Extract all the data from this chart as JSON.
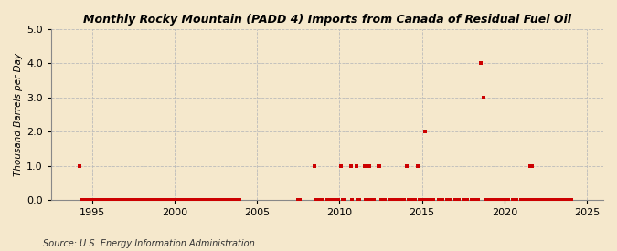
{
  "title": "Monthly Rocky Mountain (PADD 4) Imports from Canada of Residual Fuel Oil",
  "ylabel": "Thousand Barrels per Day",
  "source": "Source: U.S. Energy Information Administration",
  "xlim": [
    1992.5,
    2026
  ],
  "ylim": [
    0.0,
    5.0
  ],
  "yticks": [
    0.0,
    1.0,
    2.0,
    3.0,
    4.0,
    5.0
  ],
  "xticks": [
    1995,
    2000,
    2005,
    2010,
    2015,
    2020,
    2025
  ],
  "background_color": "#f5e8cc",
  "plot_bg_color": "#f5e8cc",
  "marker_color": "#cc0000",
  "grid_color": "#bbbbbb",
  "vline_color": "#bbbbbb",
  "data_points": [
    [
      1994.25,
      1.0
    ],
    [
      1994.33,
      0.0
    ],
    [
      1994.42,
      0.0
    ],
    [
      1994.5,
      0.0
    ],
    [
      1994.58,
      0.0
    ],
    [
      1994.67,
      0.0
    ],
    [
      1994.75,
      0.0
    ],
    [
      1994.83,
      0.0
    ],
    [
      1994.92,
      0.0
    ],
    [
      1995.0,
      0.0
    ],
    [
      1995.08,
      0.0
    ],
    [
      1995.17,
      0.0
    ],
    [
      1995.25,
      0.0
    ],
    [
      1995.33,
      0.0
    ],
    [
      1995.42,
      0.0
    ],
    [
      1995.5,
      0.0
    ],
    [
      1995.58,
      0.0
    ],
    [
      1995.67,
      0.0
    ],
    [
      1995.75,
      0.0
    ],
    [
      1995.83,
      0.0
    ],
    [
      1995.92,
      0.0
    ],
    [
      1996.0,
      0.0
    ],
    [
      1996.08,
      0.0
    ],
    [
      1996.17,
      0.0
    ],
    [
      1996.25,
      0.0
    ],
    [
      1996.33,
      0.0
    ],
    [
      1996.42,
      0.0
    ],
    [
      1996.5,
      0.0
    ],
    [
      1996.58,
      0.0
    ],
    [
      1996.67,
      0.0
    ],
    [
      1996.75,
      0.0
    ],
    [
      1996.83,
      0.0
    ],
    [
      1996.92,
      0.0
    ],
    [
      1997.0,
      0.0
    ],
    [
      1997.08,
      0.0
    ],
    [
      1997.17,
      0.0
    ],
    [
      1997.25,
      0.0
    ],
    [
      1997.33,
      0.0
    ],
    [
      1997.42,
      0.0
    ],
    [
      1997.5,
      0.0
    ],
    [
      1997.58,
      0.0
    ],
    [
      1997.67,
      0.0
    ],
    [
      1997.75,
      0.0
    ],
    [
      1997.83,
      0.0
    ],
    [
      1997.92,
      0.0
    ],
    [
      1998.0,
      0.0
    ],
    [
      1998.08,
      0.0
    ],
    [
      1998.17,
      0.0
    ],
    [
      1998.25,
      0.0
    ],
    [
      1998.33,
      0.0
    ],
    [
      1998.42,
      0.0
    ],
    [
      1998.5,
      0.0
    ],
    [
      1998.58,
      0.0
    ],
    [
      1998.67,
      0.0
    ],
    [
      1998.75,
      0.0
    ],
    [
      1998.83,
      0.0
    ],
    [
      1998.92,
      0.0
    ],
    [
      1999.0,
      0.0
    ],
    [
      1999.08,
      0.0
    ],
    [
      1999.17,
      0.0
    ],
    [
      1999.25,
      0.0
    ],
    [
      1999.33,
      0.0
    ],
    [
      1999.42,
      0.0
    ],
    [
      1999.5,
      0.0
    ],
    [
      1999.58,
      0.0
    ],
    [
      1999.67,
      0.0
    ],
    [
      1999.75,
      0.0
    ],
    [
      1999.83,
      0.0
    ],
    [
      1999.92,
      0.0
    ],
    [
      2000.0,
      0.0
    ],
    [
      2000.08,
      0.0
    ],
    [
      2000.17,
      0.0
    ],
    [
      2000.25,
      0.0
    ],
    [
      2000.33,
      0.0
    ],
    [
      2000.42,
      0.0
    ],
    [
      2000.5,
      0.0
    ],
    [
      2000.58,
      0.0
    ],
    [
      2000.67,
      0.0
    ],
    [
      2000.75,
      0.0
    ],
    [
      2000.83,
      0.0
    ],
    [
      2000.92,
      0.0
    ],
    [
      2001.0,
      0.0
    ],
    [
      2001.08,
      0.0
    ],
    [
      2001.17,
      0.0
    ],
    [
      2001.25,
      0.0
    ],
    [
      2001.33,
      0.0
    ],
    [
      2001.42,
      0.0
    ],
    [
      2001.5,
      0.0
    ],
    [
      2001.58,
      0.0
    ],
    [
      2001.67,
      0.0
    ],
    [
      2001.75,
      0.0
    ],
    [
      2001.83,
      0.0
    ],
    [
      2001.92,
      0.0
    ],
    [
      2002.0,
      0.0
    ],
    [
      2002.08,
      0.0
    ],
    [
      2002.17,
      0.0
    ],
    [
      2002.25,
      0.0
    ],
    [
      2002.33,
      0.0
    ],
    [
      2002.42,
      0.0
    ],
    [
      2002.5,
      0.0
    ],
    [
      2002.58,
      0.0
    ],
    [
      2002.67,
      0.0
    ],
    [
      2002.75,
      0.0
    ],
    [
      2002.83,
      0.0
    ],
    [
      2002.92,
      0.0
    ],
    [
      2003.0,
      0.0
    ],
    [
      2003.08,
      0.0
    ],
    [
      2003.17,
      0.0
    ],
    [
      2003.25,
      0.0
    ],
    [
      2003.33,
      0.0
    ],
    [
      2003.42,
      0.0
    ],
    [
      2003.5,
      0.0
    ],
    [
      2003.58,
      0.0
    ],
    [
      2003.67,
      0.0
    ],
    [
      2003.75,
      0.0
    ],
    [
      2003.83,
      0.0
    ],
    [
      2003.92,
      0.0
    ],
    [
      2007.5,
      0.0
    ],
    [
      2007.58,
      0.0
    ],
    [
      2008.5,
      1.0
    ],
    [
      2008.58,
      0.0
    ],
    [
      2008.67,
      0.0
    ],
    [
      2008.75,
      0.0
    ],
    [
      2009.0,
      0.0
    ],
    [
      2009.25,
      0.0
    ],
    [
      2009.42,
      0.0
    ],
    [
      2009.58,
      0.0
    ],
    [
      2009.75,
      0.0
    ],
    [
      2009.92,
      0.0
    ],
    [
      2010.08,
      1.0
    ],
    [
      2010.17,
      0.0
    ],
    [
      2010.25,
      0.0
    ],
    [
      2010.33,
      0.0
    ],
    [
      2010.67,
      1.0
    ],
    [
      2010.75,
      0.0
    ],
    [
      2011.0,
      1.0
    ],
    [
      2011.08,
      0.0
    ],
    [
      2011.17,
      0.0
    ],
    [
      2011.5,
      1.0
    ],
    [
      2011.58,
      0.0
    ],
    [
      2011.67,
      0.0
    ],
    [
      2011.75,
      0.0
    ],
    [
      2011.83,
      1.0
    ],
    [
      2011.92,
      0.0
    ],
    [
      2012.0,
      0.0
    ],
    [
      2012.08,
      0.0
    ],
    [
      2012.33,
      1.0
    ],
    [
      2012.42,
      1.0
    ],
    [
      2012.5,
      0.0
    ],
    [
      2012.58,
      0.0
    ],
    [
      2012.67,
      0.0
    ],
    [
      2012.75,
      0.0
    ],
    [
      2013.0,
      0.0
    ],
    [
      2013.17,
      0.0
    ],
    [
      2013.33,
      0.0
    ],
    [
      2013.5,
      0.0
    ],
    [
      2013.67,
      0.0
    ],
    [
      2013.75,
      0.0
    ],
    [
      2013.83,
      0.0
    ],
    [
      2013.92,
      0.0
    ],
    [
      2014.08,
      1.0
    ],
    [
      2014.17,
      0.0
    ],
    [
      2014.33,
      0.0
    ],
    [
      2014.58,
      0.0
    ],
    [
      2014.75,
      1.0
    ],
    [
      2014.83,
      0.0
    ],
    [
      2014.92,
      0.0
    ],
    [
      2015.0,
      0.0
    ],
    [
      2015.08,
      0.0
    ],
    [
      2015.17,
      2.0
    ],
    [
      2015.25,
      0.0
    ],
    [
      2015.33,
      0.0
    ],
    [
      2015.42,
      0.0
    ],
    [
      2015.5,
      0.0
    ],
    [
      2015.67,
      0.0
    ],
    [
      2016.0,
      0.0
    ],
    [
      2016.25,
      0.0
    ],
    [
      2016.5,
      0.0
    ],
    [
      2016.75,
      0.0
    ],
    [
      2017.0,
      0.0
    ],
    [
      2017.25,
      0.0
    ],
    [
      2017.5,
      0.0
    ],
    [
      2017.75,
      0.0
    ],
    [
      2018.0,
      0.0
    ],
    [
      2018.25,
      0.0
    ],
    [
      2018.42,
      0.0
    ],
    [
      2018.58,
      4.0
    ],
    [
      2018.75,
      3.0
    ],
    [
      2018.92,
      0.0
    ],
    [
      2019.08,
      0.0
    ],
    [
      2019.17,
      0.0
    ],
    [
      2019.33,
      0.0
    ],
    [
      2019.42,
      0.0
    ],
    [
      2019.58,
      0.0
    ],
    [
      2019.75,
      0.0
    ],
    [
      2019.92,
      0.0
    ],
    [
      2020.0,
      0.0
    ],
    [
      2020.25,
      0.0
    ],
    [
      2020.5,
      0.0
    ],
    [
      2020.75,
      0.0
    ],
    [
      2021.0,
      0.0
    ],
    [
      2021.17,
      0.0
    ],
    [
      2021.33,
      0.0
    ],
    [
      2021.5,
      0.0
    ],
    [
      2021.58,
      1.0
    ],
    [
      2021.67,
      1.0
    ],
    [
      2021.75,
      0.0
    ],
    [
      2021.92,
      0.0
    ],
    [
      2022.08,
      0.0
    ],
    [
      2022.25,
      0.0
    ],
    [
      2022.33,
      0.0
    ],
    [
      2022.5,
      0.0
    ],
    [
      2022.58,
      0.0
    ],
    [
      2022.67,
      0.0
    ],
    [
      2022.75,
      0.0
    ],
    [
      2022.83,
      0.0
    ],
    [
      2023.0,
      0.0
    ],
    [
      2023.25,
      0.0
    ],
    [
      2023.42,
      0.0
    ],
    [
      2023.58,
      0.0
    ],
    [
      2023.67,
      0.0
    ],
    [
      2023.75,
      0.0
    ],
    [
      2023.83,
      0.0
    ],
    [
      2023.92,
      0.0
    ],
    [
      2024.0,
      0.0
    ],
    [
      2024.08,
      0.0
    ]
  ]
}
